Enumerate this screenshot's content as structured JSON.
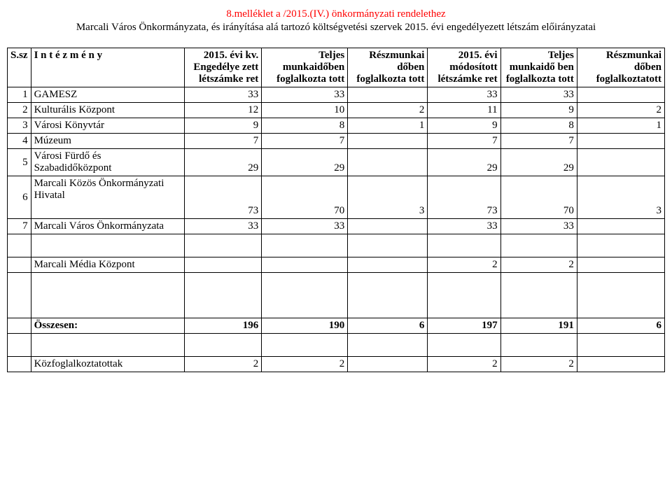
{
  "header": {
    "line1": "8.melléklet a  /2015.(IV.) önkormányzati rendelethez",
    "line2": "Marcali Város Önkormányzata, és irányítása alá tartozó költségvetési szervek 2015. évi engedélyezett létszám előirányzatai"
  },
  "table": {
    "headers": {
      "ssz": "S.sz",
      "intezmeny": "I n t é z m é n y",
      "col1": "2015. évi kv. Engedélye zett létszámke ret",
      "col2": "Teljes munkaidőben foglalkozta tott",
      "col3": "Részmunkai dőben foglalkozta tott",
      "col4": "2015. évi módosított létszámke ret",
      "col5": "Teljes munkaidő ben foglalkozta tott",
      "col6": "Részmunkai dőben foglalkoztatott"
    },
    "rows": [
      {
        "n": "1",
        "label": "GAMESZ",
        "v": [
          "33",
          "33",
          "",
          "33",
          "33",
          ""
        ]
      },
      {
        "n": "2",
        "label": "Kulturális Központ",
        "v": [
          "12",
          "10",
          "2",
          "11",
          "9",
          "2"
        ]
      },
      {
        "n": "3",
        "label": "Városi Könyvtár",
        "v": [
          "9",
          "8",
          "1",
          "9",
          "8",
          "1"
        ]
      },
      {
        "n": "4",
        "label": "Múzeum",
        "v": [
          "7",
          "7",
          "",
          "7",
          "7",
          ""
        ]
      },
      {
        "n": "5",
        "label": "Városi Fürdő és Szabadidőközpont",
        "v": [
          "29",
          "29",
          "",
          "29",
          "29",
          ""
        ]
      },
      {
        "n": "6",
        "label": "Marcali Közös Önkormányzati Hivatal",
        "v": [
          "73",
          "70",
          "3",
          "73",
          "70",
          "3"
        ]
      },
      {
        "n": "7",
        "label": "Marcali Város Önkormányzata",
        "v": [
          "33",
          "33",
          "",
          "33",
          "33",
          ""
        ]
      }
    ],
    "media_row": {
      "label": "Marcali Média Központ",
      "v": [
        "",
        "",
        "",
        "2",
        "2",
        ""
      ]
    },
    "total_row": {
      "label": "Összesen:",
      "v": [
        "196",
        "190",
        "6",
        "197",
        "191",
        "6"
      ]
    },
    "kozfog_row": {
      "label": "Közfoglalkoztatottak",
      "v": [
        "2",
        "2",
        "",
        "2",
        "2",
        ""
      ]
    }
  }
}
